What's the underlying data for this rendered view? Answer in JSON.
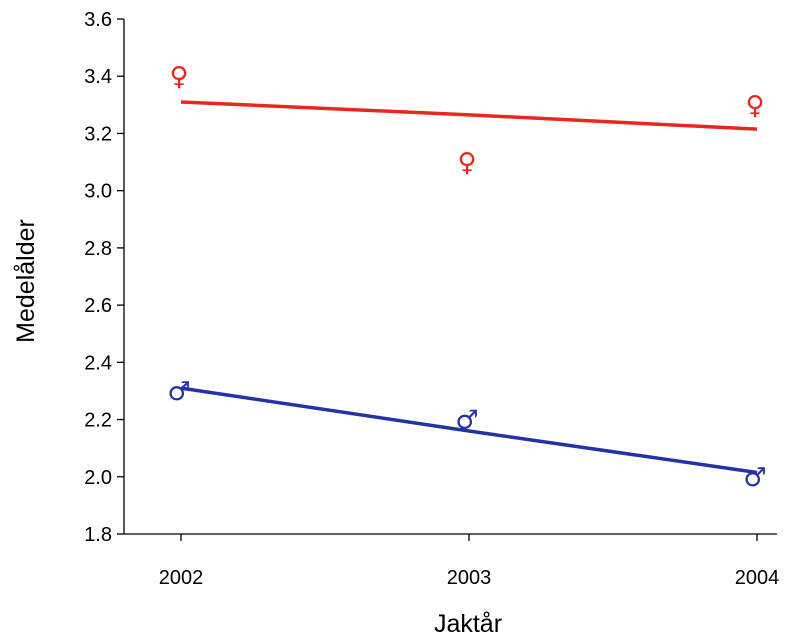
{
  "chart_data": {
    "type": "scatter",
    "title": "",
    "xlabel": "Jaktår",
    "ylabel": "Medelålder",
    "categories": [
      "2002",
      "2003",
      "2004"
    ],
    "ylim": [
      1.8,
      3.6
    ],
    "yticks": [
      "1.8",
      "2.0",
      "2.2",
      "2.4",
      "2.6",
      "2.8",
      "3.0",
      "3.2",
      "3.4",
      "3.6"
    ],
    "grid": false,
    "legend": "none",
    "series": [
      {
        "marker": "♀",
        "color": "#e8281e",
        "points": [
          3.4,
          3.1,
          3.3
        ],
        "trend": [
          3.31,
          3.265,
          3.215
        ]
      },
      {
        "marker": "♂",
        "color": "#2233a8",
        "points": [
          2.3,
          2.2,
          2.0
        ],
        "trend": [
          2.31,
          2.16,
          2.015
        ]
      }
    ]
  }
}
